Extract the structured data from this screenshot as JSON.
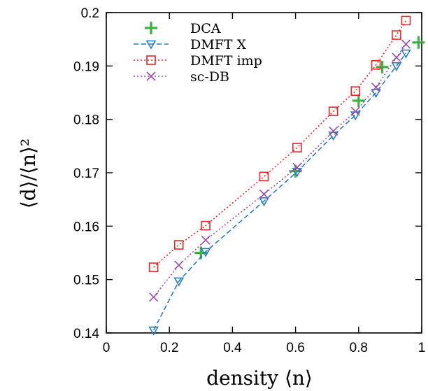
{
  "chart_data": {
    "type": "line",
    "xlabel": "density ⟨n⟩",
    "ylabel": "⟨d⟩/⟨n⟩²",
    "xlim": [
      0,
      1
    ],
    "ylim": [
      0.14,
      0.2
    ],
    "x_ticks": [
      "0",
      "0.2",
      "0.4",
      "0.6",
      "0.8",
      "1"
    ],
    "y_ticks": [
      "0.14",
      "0.15",
      "0.16",
      "0.17",
      "0.18",
      "0.19",
      "0.2"
    ],
    "grid": false,
    "legend_position": "top-left",
    "series": [
      {
        "name": "DCA",
        "color": "#3cb043",
        "marker": "plus",
        "line": "none",
        "x": [
          0.3,
          0.6,
          0.8,
          0.875,
          0.99
        ],
        "y": [
          0.155,
          0.1703,
          0.1835,
          0.1898,
          0.1944
        ]
      },
      {
        "name": "DMFT X",
        "color": "#2c7bb6",
        "marker": "triangle-down",
        "line": "dashed",
        "x": [
          0.15,
          0.23,
          0.315,
          0.5,
          0.605,
          0.72,
          0.79,
          0.855,
          0.92,
          0.95
        ],
        "y": [
          0.1405,
          0.1497,
          0.1552,
          0.1647,
          0.1702,
          0.177,
          0.1808,
          0.185,
          0.19,
          0.1924
        ]
      },
      {
        "name": "DMFT imp",
        "color": "#e3272b",
        "marker": "square",
        "line": "dotted",
        "x": [
          0.15,
          0.23,
          0.315,
          0.5,
          0.605,
          0.72,
          0.79,
          0.855,
          0.92,
          0.95
        ],
        "y": [
          0.1523,
          0.1565,
          0.1601,
          0.1693,
          0.1747,
          0.1815,
          0.1853,
          0.1902,
          0.1958,
          0.1985
        ]
      },
      {
        "name": "sc-DB",
        "color": "#9b4ea8",
        "marker": "x",
        "line": "dotted",
        "x": [
          0.15,
          0.23,
          0.315,
          0.5,
          0.605,
          0.72,
          0.79,
          0.855,
          0.92,
          0.95
        ],
        "y": [
          0.1467,
          0.1527,
          0.1574,
          0.166,
          0.171,
          0.1778,
          0.1815,
          0.186,
          0.1916,
          0.1941
        ]
      }
    ]
  }
}
